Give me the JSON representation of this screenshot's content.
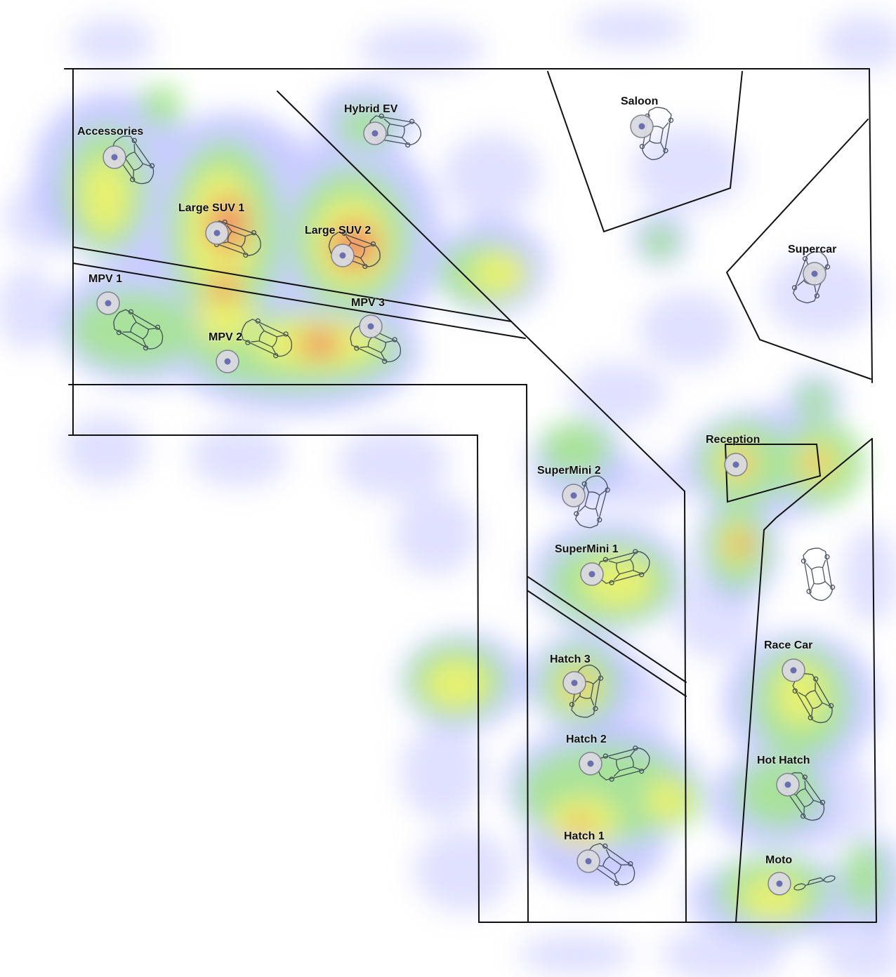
{
  "map": {
    "heat_colors": [
      "#b8bcff",
      "#9fe07a",
      "#eef06a",
      "#f08a6a"
    ],
    "stations": [
      {
        "id": "accessories",
        "label": "Accessories",
        "level": 0.55
      },
      {
        "id": "hybrid-ev",
        "label": "Hybrid EV",
        "level": 0.35
      },
      {
        "id": "saloon",
        "label": "Saloon",
        "level": 0.1
      },
      {
        "id": "large-suv-1",
        "label": "Large SUV 1",
        "level": 0.85
      },
      {
        "id": "large-suv-2",
        "label": "Large SUV 2",
        "level": 0.9
      },
      {
        "id": "supercar",
        "label": "Supercar",
        "level": 0.1
      },
      {
        "id": "mpv-1",
        "label": "MPV 1",
        "level": 0.55
      },
      {
        "id": "mpv-3",
        "label": "MPV 3",
        "level": 0.7
      },
      {
        "id": "mpv-2",
        "label": "MPV 2",
        "level": 0.75
      },
      {
        "id": "reception",
        "label": "Reception",
        "level": 0.85
      },
      {
        "id": "supermini-2",
        "label": "SuperMini 2",
        "level": 0.35
      },
      {
        "id": "supermini-1",
        "label": "SuperMini 1",
        "level": 0.65
      },
      {
        "id": "hatch-3",
        "label": "Hatch 3",
        "level": 0.8
      },
      {
        "id": "race-car",
        "label": "Race Car",
        "level": 0.6
      },
      {
        "id": "hatch-2",
        "label": "Hatch 2",
        "level": 0.5
      },
      {
        "id": "hot-hatch",
        "label": "Hot Hatch",
        "level": 0.5
      },
      {
        "id": "hatch-1",
        "label": "Hatch 1",
        "level": 0.75
      },
      {
        "id": "moto",
        "label": "Moto",
        "level": 0.55
      }
    ]
  }
}
